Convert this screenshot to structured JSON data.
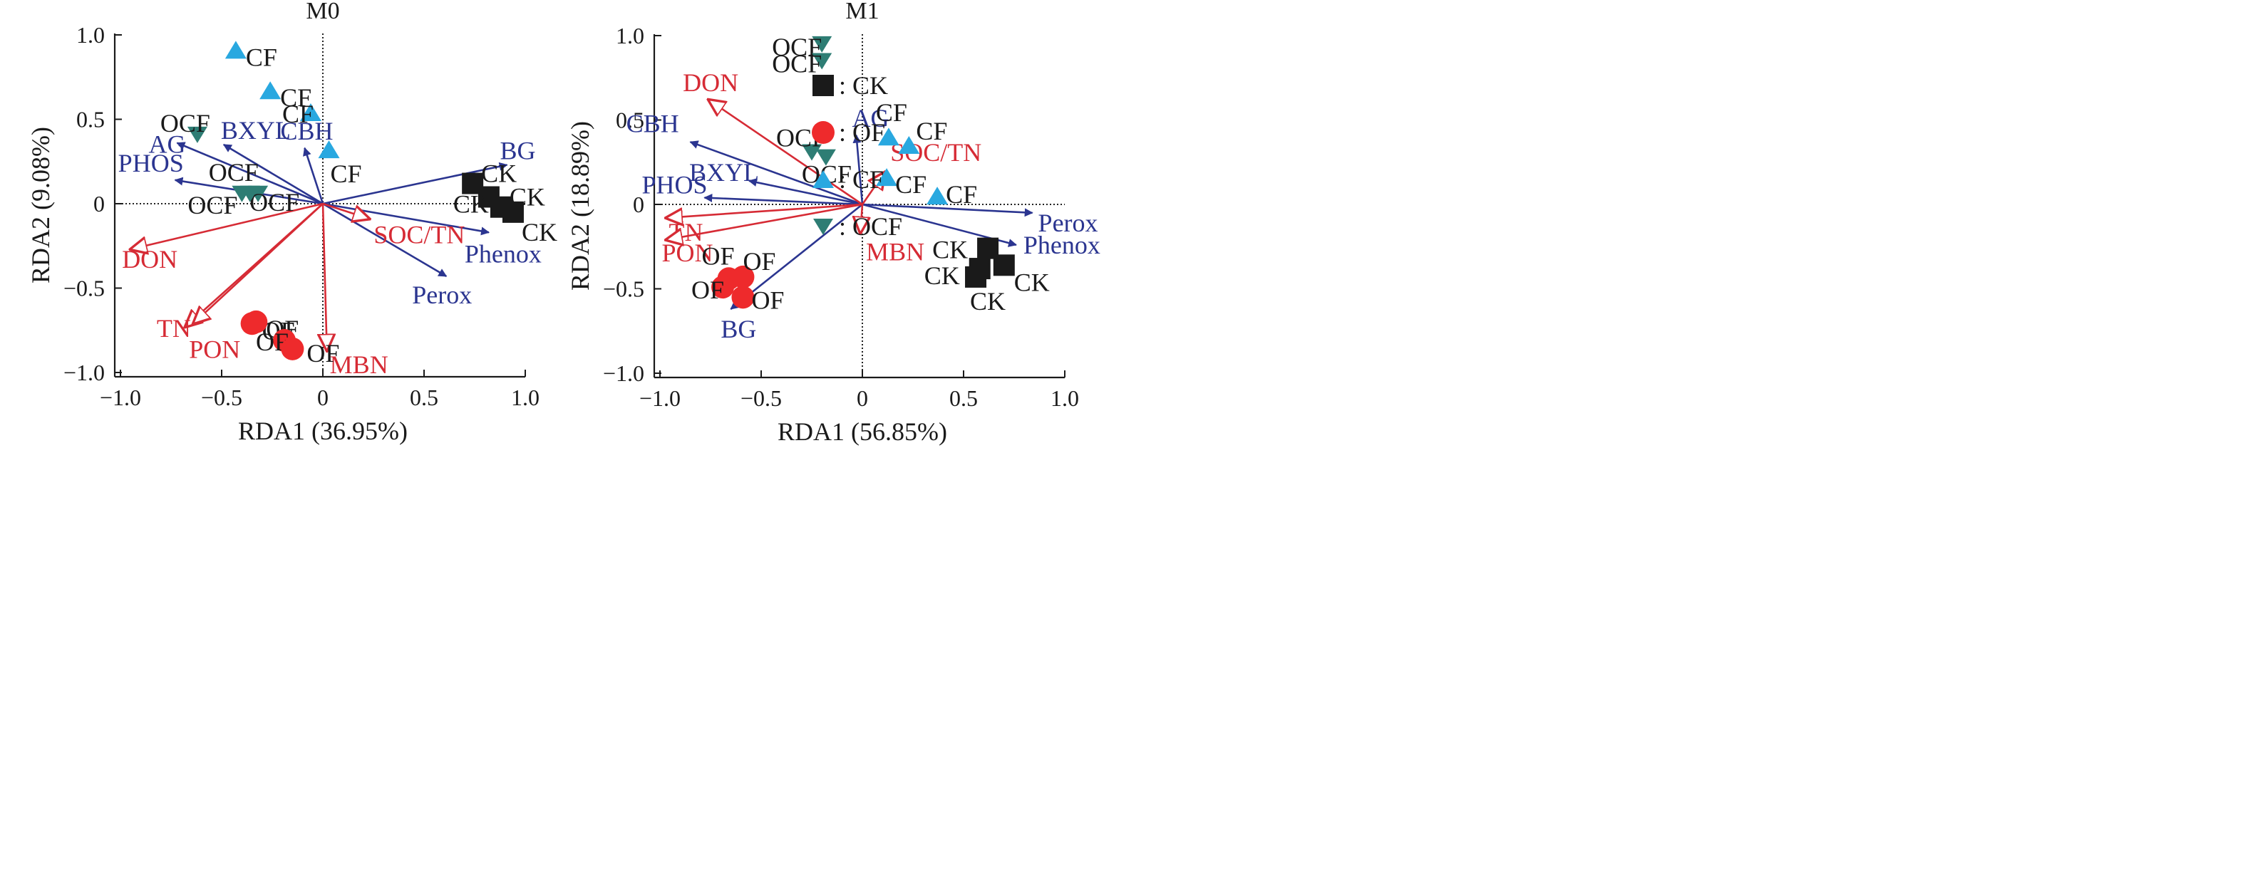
{
  "colors": {
    "enzyme_arrow": "#2B3590",
    "nitrogen_arrow": "#D62B35",
    "point_label": "#1a1a1a",
    "axis": "#1a1a1a",
    "CK": "#1a1a1a",
    "OF": "#EE2A2C",
    "CF": "#29A8E0",
    "OCF": "#2E7D74"
  },
  "legend": {
    "entries": [
      {
        "marker": "square",
        "group": "CK",
        "label": ": CK"
      },
      {
        "marker": "circle",
        "group": "OF",
        "label": ": OF"
      },
      {
        "marker": "triangle-up",
        "group": "CF",
        "label": ": CF"
      },
      {
        "marker": "triangle-down",
        "group": "OCF",
        "label": ": OCF"
      }
    ]
  },
  "chart_data": [
    {
      "type": "scatter",
      "subtype": "rda-biplot",
      "title": "M0",
      "xlabel": "RDA1 (36.95%)",
      "ylabel": "RDA2 (9.08%)",
      "xlim": [
        -1.0,
        1.0
      ],
      "ylim": [
        -1.0,
        1.0
      ],
      "xticks": [
        "−1.0",
        "−0.5",
        "0",
        "0.5",
        "1.0"
      ],
      "yticks": [
        "1.0",
        "0.5",
        "0",
        "−0.5",
        "−1.0"
      ],
      "zero_lines": "dotted",
      "points": [
        {
          "group": "CK",
          "x": 0.74,
          "y": 0.12,
          "label": "CK"
        },
        {
          "group": "CK",
          "x": 0.82,
          "y": 0.04,
          "label": "CK"
        },
        {
          "group": "CK",
          "x": 0.88,
          "y": -0.02,
          "label": "CK"
        },
        {
          "group": "CK",
          "x": 0.94,
          "y": -0.05,
          "label": "CK"
        },
        {
          "group": "OF",
          "x": -0.35,
          "y": -0.71,
          "label": "OF"
        },
        {
          "group": "OF",
          "x": -0.33,
          "y": -0.7,
          "label": "OF"
        },
        {
          "group": "OF",
          "x": -0.19,
          "y": -0.81,
          "label": "OF"
        },
        {
          "group": "OF",
          "x": -0.15,
          "y": -0.86,
          "label": "OF"
        },
        {
          "group": "CF",
          "x": -0.43,
          "y": 0.91,
          "label": "CF"
        },
        {
          "group": "CF",
          "x": -0.26,
          "y": 0.67,
          "label": "CF"
        },
        {
          "group": "CF",
          "x": -0.06,
          "y": 0.54,
          "label": "CF"
        },
        {
          "group": "CF",
          "x": 0.03,
          "y": 0.32,
          "label": "CF"
        },
        {
          "group": "OCF",
          "x": -0.62,
          "y": 0.41,
          "label": "OCF"
        },
        {
          "group": "OCF",
          "x": -0.4,
          "y": 0.06,
          "label": "OCF"
        },
        {
          "group": "OCF",
          "x": -0.32,
          "y": 0.06,
          "label": "OCF"
        },
        {
          "group": "OCF",
          "x": -0.36,
          "y": 0.06,
          "label": "OCF"
        }
      ],
      "enzyme_vectors": [
        {
          "name": "BG",
          "x": 0.91,
          "y": 0.23
        },
        {
          "name": "AG",
          "x": -0.72,
          "y": 0.36
        },
        {
          "name": "BXYL",
          "x": -0.49,
          "y": 0.35
        },
        {
          "name": "CBH",
          "x": -0.09,
          "y": 0.33
        },
        {
          "name": "PHOS",
          "x": -0.73,
          "y": 0.14
        },
        {
          "name": "Phenox",
          "x": 0.82,
          "y": -0.17
        },
        {
          "name": "Perox",
          "x": 0.61,
          "y": -0.43
        }
      ],
      "nitrogen_vectors": [
        {
          "name": "DON",
          "x": -0.95,
          "y": -0.27
        },
        {
          "name": "TN",
          "x": -0.68,
          "y": -0.73
        },
        {
          "name": "PON",
          "x": -0.64,
          "y": -0.71
        },
        {
          "name": "SOC/TN",
          "x": 0.23,
          "y": -0.09
        },
        {
          "name": "MBN",
          "x": 0.02,
          "y": -0.87
        }
      ]
    },
    {
      "type": "scatter",
      "subtype": "rda-biplot",
      "title": "M1",
      "xlabel": "RDA1 (56.85%)",
      "ylabel": "RDA2 (18.89%)",
      "xlim": [
        -1.0,
        1.0
      ],
      "ylim": [
        -1.0,
        1.0
      ],
      "xticks": [
        "−1.0",
        "−0.5",
        "0",
        "0.5",
        "1.0"
      ],
      "yticks": [
        "1.0",
        "0.5",
        "0",
        "−0.5",
        "−1.0"
      ],
      "zero_lines": "dotted",
      "points": [
        {
          "group": "CK",
          "x": 0.62,
          "y": -0.26,
          "label": "CK"
        },
        {
          "group": "CK",
          "x": 0.58,
          "y": -0.38,
          "label": "CK"
        },
        {
          "group": "CK",
          "x": 0.56,
          "y": -0.43,
          "label": "CK"
        },
        {
          "group": "CK",
          "x": 0.7,
          "y": -0.36,
          "label": "CK"
        },
        {
          "group": "OF",
          "x": -0.66,
          "y": -0.44,
          "label": "OF"
        },
        {
          "group": "OF",
          "x": -0.59,
          "y": -0.43,
          "label": "OF"
        },
        {
          "group": "OF",
          "x": -0.69,
          "y": -0.49,
          "label": "OF"
        },
        {
          "group": "OF",
          "x": -0.59,
          "y": -0.55,
          "label": "OF"
        },
        {
          "group": "CF",
          "x": 0.13,
          "y": 0.4,
          "label": "CF"
        },
        {
          "group": "CF",
          "x": 0.23,
          "y": 0.35,
          "label": "CF"
        },
        {
          "group": "CF",
          "x": 0.12,
          "y": 0.16,
          "label": "CF"
        },
        {
          "group": "CF",
          "x": 0.37,
          "y": 0.05,
          "label": "CF"
        },
        {
          "group": "OCF",
          "x": -0.2,
          "y": 0.95,
          "label": "OCF"
        },
        {
          "group": "OCF",
          "x": -0.2,
          "y": 0.85,
          "label": "OCF"
        },
        {
          "group": "OCF",
          "x": -0.25,
          "y": 0.31,
          "label": "OCF"
        },
        {
          "group": "OCF",
          "x": -0.18,
          "y": 0.28,
          "label": "OCF"
        }
      ],
      "enzyme_vectors": [
        {
          "name": "CBH",
          "x": -0.85,
          "y": 0.37
        },
        {
          "name": "AG",
          "x": -0.03,
          "y": 0.41
        },
        {
          "name": "BXYL",
          "x": -0.56,
          "y": 0.14
        },
        {
          "name": "PHOS",
          "x": -0.78,
          "y": 0.04
        },
        {
          "name": "BG",
          "x": -0.65,
          "y": -0.62
        },
        {
          "name": "Perox",
          "x": 0.84,
          "y": -0.05
        },
        {
          "name": "Phenox",
          "x": 0.76,
          "y": -0.24
        }
      ],
      "nitrogen_vectors": [
        {
          "name": "DON",
          "x": -0.76,
          "y": 0.62
        },
        {
          "name": "SOC/TN",
          "x": 0.11,
          "y": 0.19
        },
        {
          "name": "TN",
          "x": -0.97,
          "y": -0.08
        },
        {
          "name": "PON",
          "x": -0.97,
          "y": -0.21
        },
        {
          "name": "MBN",
          "x": -0.01,
          "y": -0.17
        }
      ]
    }
  ]
}
